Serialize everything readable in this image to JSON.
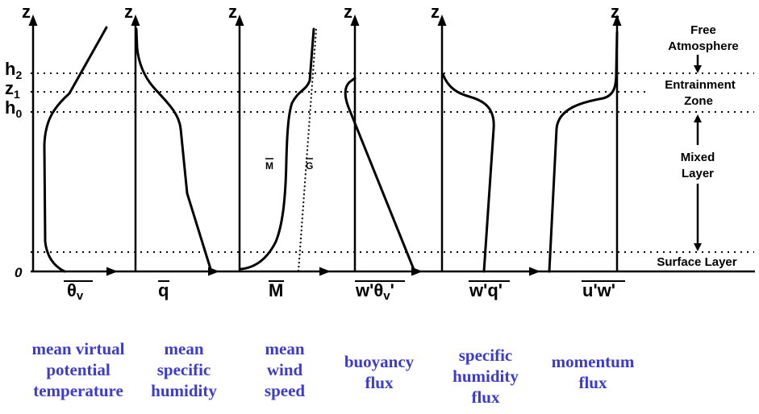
{
  "z_axis_label": "z",
  "origin_label": "0",
  "height_levels": [
    {
      "base": "h",
      "sub": "2"
    },
    {
      "base": "z",
      "sub": "1"
    },
    {
      "base": "h",
      "sub": "0"
    }
  ],
  "layers": {
    "free_atmosphere": [
      "Free",
      "Atmosphere"
    ],
    "entrainment_zone": [
      "Entrainment",
      "Zone"
    ],
    "mixed_layer": [
      "Mixed",
      "Layer"
    ],
    "surface_layer": "Surface Layer"
  },
  "panels": [
    {
      "axis_symbol": "θ",
      "axis_sub": "v",
      "caption": [
        "mean virtual",
        "potential",
        "temperature"
      ]
    },
    {
      "axis_symbol": "q",
      "axis_sub": "",
      "caption": [
        "mean",
        "specific",
        "humidity"
      ]
    },
    {
      "axis_symbol": "M",
      "axis_sub": "",
      "caption": [
        "mean",
        "wind",
        "speed"
      ]
    },
    {
      "axis_symbol": "w'θ",
      "axis_sub": "v",
      "axis_suffix": "'",
      "caption": [
        "buoyancy",
        "flux"
      ]
    },
    {
      "axis_symbol": "w'q'",
      "axis_sub": "",
      "caption": [
        "specific",
        "humidity",
        "flux"
      ]
    },
    {
      "axis_symbol": "u'w'",
      "axis_sub": "",
      "caption": [
        "momentum",
        "flux"
      ]
    }
  ],
  "wind_labels": {
    "mean_wind": "M",
    "geostrophic_wind": "G"
  },
  "colors": {
    "caption": "#3b3bd4",
    "lines": "#000000"
  }
}
